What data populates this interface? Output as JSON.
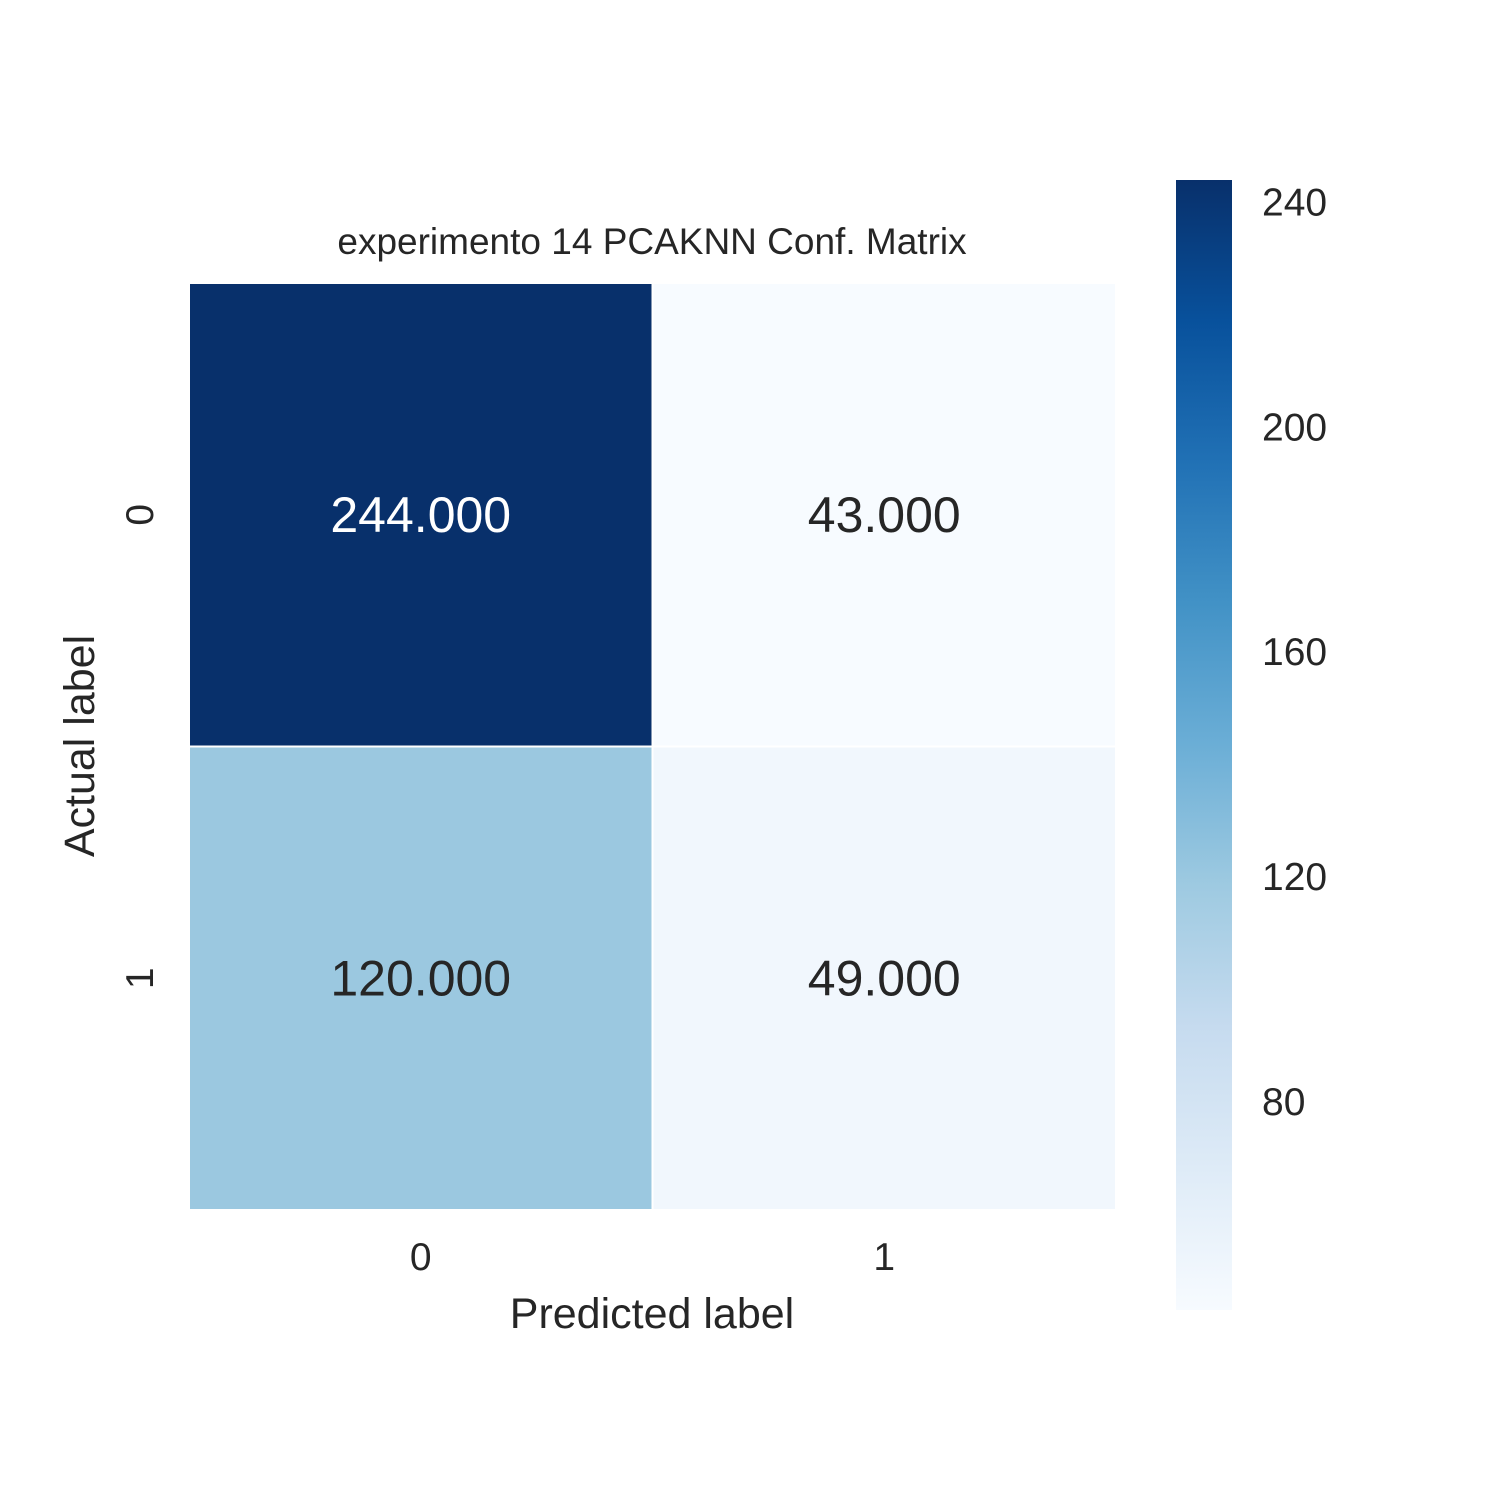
{
  "chart_data": {
    "type": "heatmap",
    "title": "experimento 14 PCAKNN Conf. Matrix",
    "xlabel": "Predicted label",
    "ylabel": "Actual label",
    "x_categories": [
      "0",
      "1"
    ],
    "y_categories": [
      "0",
      "1"
    ],
    "values": [
      [
        244,
        43
      ],
      [
        120,
        49
      ]
    ],
    "cell_labels": [
      [
        "244.000",
        "43.000"
      ],
      [
        "120.000",
        "49.000"
      ]
    ],
    "colormap": "Blues",
    "colorbar": {
      "range": [
        43,
        244
      ],
      "ticks": [
        80,
        120,
        160,
        200,
        240
      ],
      "tick_labels": [
        "80",
        "120",
        "160",
        "200",
        "240"
      ]
    },
    "colors": {
      "text_dark": "#262626",
      "text_light": "#ffffff",
      "cell_separator": "#ffffff"
    }
  }
}
